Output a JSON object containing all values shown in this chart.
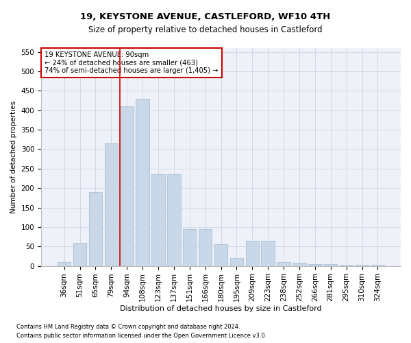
{
  "title": "19, KEYSTONE AVENUE, CASTLEFORD, WF10 4TH",
  "subtitle": "Size of property relative to detached houses in Castleford",
  "xlabel": "Distribution of detached houses by size in Castleford",
  "ylabel": "Number of detached properties",
  "footnote1": "Contains HM Land Registry data © Crown copyright and database right 2024.",
  "footnote2": "Contains public sector information licensed under the Open Government Licence v3.0.",
  "categories": [
    "36sqm",
    "51sqm",
    "65sqm",
    "79sqm",
    "94sqm",
    "108sqm",
    "123sqm",
    "137sqm",
    "151sqm",
    "166sqm",
    "180sqm",
    "195sqm",
    "209sqm",
    "223sqm",
    "238sqm",
    "252sqm",
    "266sqm",
    "281sqm",
    "295sqm",
    "310sqm",
    "324sqm"
  ],
  "values": [
    10,
    60,
    190,
    315,
    410,
    430,
    235,
    235,
    95,
    95,
    55,
    20,
    65,
    65,
    10,
    8,
    5,
    4,
    3,
    2,
    2
  ],
  "bar_color": "#c8d8e8",
  "bar_edge_color": "#a0b8d0",
  "annotation_line1": "19 KEYSTONE AVENUE: 90sqm",
  "annotation_line2": "← 24% of detached houses are smaller (463)",
  "annotation_line3": "74% of semi-detached houses are larger (1,405) →",
  "annotation_box_color": "#ffffff",
  "annotation_box_edge": "#cc0000",
  "red_line_color": "#cc0000",
  "grid_color": "#d0d8e8",
  "background_color": "#eef2f8",
  "ylim": [
    0,
    560
  ],
  "yticks": [
    0,
    50,
    100,
    150,
    200,
    250,
    300,
    350,
    400,
    450,
    500,
    550
  ]
}
